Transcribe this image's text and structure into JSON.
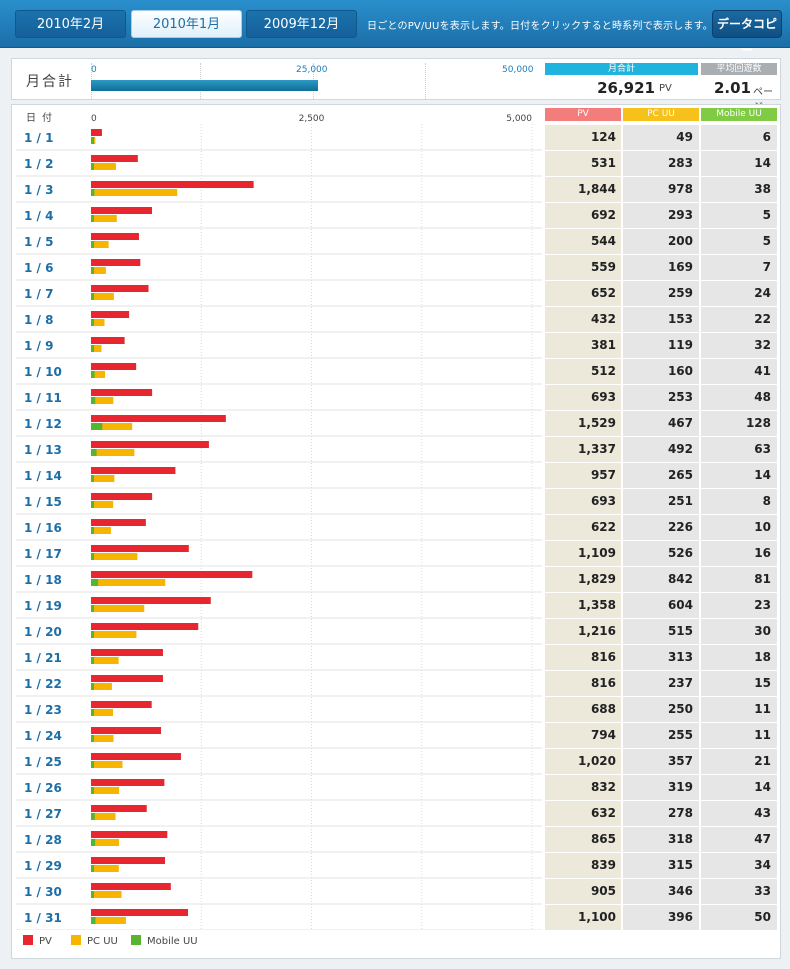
{
  "tabs": [
    {
      "label": "2010年2月",
      "active": false
    },
    {
      "label": "2010年1月",
      "active": true
    },
    {
      "label": "2009年12月",
      "active": false
    }
  ],
  "top_note": "日ごとのPV/UUを表示します。日付をクリックすると時系列で表示します。",
  "copy_button": "データコピー",
  "summary": {
    "label": "月合計",
    "axis_ticks": [
      "0",
      "25,000",
      "50,000"
    ],
    "axis_max": 50000,
    "total_header": "月合計",
    "total_value": "26,921",
    "total_value_num": 26921,
    "total_unit": "PV",
    "avg_header": "平均回遊数",
    "avg_value": "2.01",
    "avg_unit": "ページ"
  },
  "table": {
    "date_header": "日付",
    "pv_header": "PV",
    "pc_header": "PC UU",
    "mobile_header": "Mobile UU",
    "axis_ticks": [
      "0",
      "2,500",
      "5,000"
    ],
    "rows": [
      {
        "date": "1 / 1",
        "pv": "124",
        "pc": "49",
        "mobile": "6"
      },
      {
        "date": "1 / 2",
        "pv": "531",
        "pc": "283",
        "mobile": "14"
      },
      {
        "date": "1 / 3",
        "pv": "1,844",
        "pc": "978",
        "mobile": "38"
      },
      {
        "date": "1 / 4",
        "pv": "692",
        "pc": "293",
        "mobile": "5"
      },
      {
        "date": "1 / 5",
        "pv": "544",
        "pc": "200",
        "mobile": "5"
      },
      {
        "date": "1 / 6",
        "pv": "559",
        "pc": "169",
        "mobile": "7"
      },
      {
        "date": "1 / 7",
        "pv": "652",
        "pc": "259",
        "mobile": "24"
      },
      {
        "date": "1 / 8",
        "pv": "432",
        "pc": "153",
        "mobile": "22"
      },
      {
        "date": "1 / 9",
        "pv": "381",
        "pc": "119",
        "mobile": "32"
      },
      {
        "date": "1 / 10",
        "pv": "512",
        "pc": "160",
        "mobile": "41"
      },
      {
        "date": "1 / 11",
        "pv": "693",
        "pc": "253",
        "mobile": "48"
      },
      {
        "date": "1 / 12",
        "pv": "1,529",
        "pc": "467",
        "mobile": "128"
      },
      {
        "date": "1 / 13",
        "pv": "1,337",
        "pc": "492",
        "mobile": "63"
      },
      {
        "date": "1 / 14",
        "pv": "957",
        "pc": "265",
        "mobile": "14"
      },
      {
        "date": "1 / 15",
        "pv": "693",
        "pc": "251",
        "mobile": "8"
      },
      {
        "date": "1 / 16",
        "pv": "622",
        "pc": "226",
        "mobile": "10"
      },
      {
        "date": "1 / 17",
        "pv": "1,109",
        "pc": "526",
        "mobile": "16"
      },
      {
        "date": "1 / 18",
        "pv": "1,829",
        "pc": "842",
        "mobile": "81"
      },
      {
        "date": "1 / 19",
        "pv": "1,358",
        "pc": "604",
        "mobile": "23"
      },
      {
        "date": "1 / 20",
        "pv": "1,216",
        "pc": "515",
        "mobile": "30"
      },
      {
        "date": "1 / 21",
        "pv": "816",
        "pc": "313",
        "mobile": "18"
      },
      {
        "date": "1 / 22",
        "pv": "816",
        "pc": "237",
        "mobile": "15"
      },
      {
        "date": "1 / 23",
        "pv": "688",
        "pc": "250",
        "mobile": "11"
      },
      {
        "date": "1 / 24",
        "pv": "794",
        "pc": "255",
        "mobile": "11"
      },
      {
        "date": "1 / 25",
        "pv": "1,020",
        "pc": "357",
        "mobile": "21"
      },
      {
        "date": "1 / 26",
        "pv": "832",
        "pc": "319",
        "mobile": "14"
      },
      {
        "date": "1 / 27",
        "pv": "632",
        "pc": "278",
        "mobile": "43"
      },
      {
        "date": "1 / 28",
        "pv": "865",
        "pc": "318",
        "mobile": "47"
      },
      {
        "date": "1 / 29",
        "pv": "839",
        "pc": "315",
        "mobile": "34"
      },
      {
        "date": "1 / 30",
        "pv": "905",
        "pc": "346",
        "mobile": "33"
      },
      {
        "date": "1 / 31",
        "pv": "1,100",
        "pc": "396",
        "mobile": "50"
      }
    ]
  },
  "legend": [
    {
      "label": "PV",
      "color": "#e8262f"
    },
    {
      "label": "PC UU",
      "color": "#f7b500"
    },
    {
      "label": "Mobile UU",
      "color": "#56b52e"
    }
  ],
  "colors": {
    "pv": "#e8262f",
    "pc": "#f7b500",
    "mobile": "#56b52e",
    "date_link": "#1b6ea8",
    "value_cell_pv": "#ece8da",
    "value_cell_other": "#e6e6e6"
  },
  "chart_data": {
    "type": "bar",
    "orientation": "horizontal",
    "xlim": [
      0,
      5000
    ],
    "categories": [
      "1 / 1",
      "1 / 2",
      "1 / 3",
      "1 / 4",
      "1 / 5",
      "1 / 6",
      "1 / 7",
      "1 / 8",
      "1 / 9",
      "1 / 10",
      "1 / 11",
      "1 / 12",
      "1 / 13",
      "1 / 14",
      "1 / 15",
      "1 / 16",
      "1 / 17",
      "1 / 18",
      "1 / 19",
      "1 / 20",
      "1 / 21",
      "1 / 22",
      "1 / 23",
      "1 / 24",
      "1 / 25",
      "1 / 26",
      "1 / 27",
      "1 / 28",
      "1 / 29",
      "1 / 30",
      "1 / 31"
    ],
    "series": [
      {
        "name": "PV",
        "values": [
          124,
          531,
          1844,
          692,
          544,
          559,
          652,
          432,
          381,
          512,
          693,
          1529,
          1337,
          957,
          693,
          622,
          1109,
          1829,
          1358,
          1216,
          816,
          816,
          688,
          794,
          1020,
          832,
          632,
          865,
          839,
          905,
          1100
        ]
      },
      {
        "name": "PC UU",
        "values": [
          49,
          283,
          978,
          293,
          200,
          169,
          259,
          153,
          119,
          160,
          253,
          467,
          492,
          265,
          251,
          226,
          526,
          842,
          604,
          515,
          313,
          237,
          250,
          255,
          357,
          319,
          278,
          318,
          315,
          346,
          396
        ]
      },
      {
        "name": "Mobile UU",
        "values": [
          6,
          14,
          38,
          5,
          5,
          7,
          24,
          22,
          32,
          41,
          48,
          128,
          63,
          14,
          8,
          10,
          16,
          81,
          23,
          30,
          18,
          15,
          11,
          11,
          21,
          14,
          43,
          47,
          34,
          33,
          50
        ]
      }
    ],
    "legend_position": "bottom-left"
  }
}
